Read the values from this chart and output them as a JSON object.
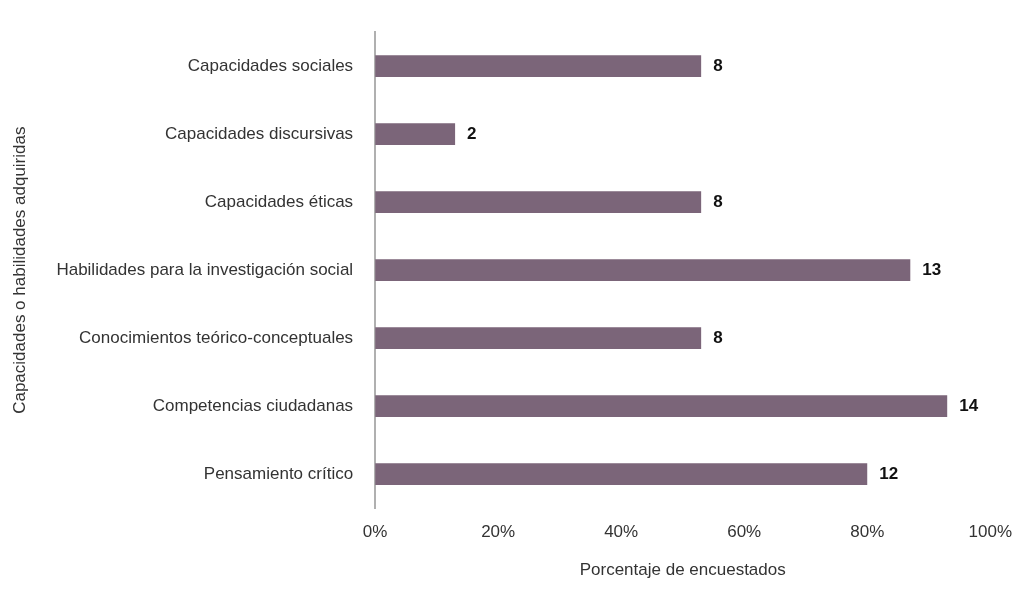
{
  "chart_data": {
    "type": "bar",
    "orientation": "horizontal",
    "xlabel": "Porcentaje de encuestados",
    "ylabel": "Capacidades o habilidades adquiridas",
    "categories": [
      "Capacidades sociales",
      "Capacidades discursivas",
      "Capacidades éticas",
      "Habilidades para la investigación social",
      "Conocimientos teórico-conceptuales",
      "Competencias ciudadanas",
      "Pensamiento crítico"
    ],
    "values": [
      53,
      13,
      53,
      87,
      53,
      93,
      80
    ],
    "color": "#7b6579",
    "xlim": [
      0,
      100
    ],
    "xticks": [
      {
        "value": 0,
        "label": "0%"
      },
      {
        "value": 20,
        "label": "20%"
      },
      {
        "value": 40,
        "label": "40%"
      },
      {
        "value": 60,
        "label": "60%"
      },
      {
        "value": 80,
        "label": "80%"
      },
      {
        "value": 100,
        "label": "100%"
      }
    ],
    "annotations": [
      {
        "text": "8",
        "x": 53,
        "y": "Capacidades sociales"
      },
      {
        "text": "2",
        "x": 13,
        "y": "Capacidades discursivas"
      },
      {
        "text": "8",
        "x": 53,
        "y": "Capacidades éticas"
      },
      {
        "text": "13",
        "x": 87,
        "y": "Habilidades para la investigación social"
      },
      {
        "text": "8",
        "x": 53,
        "y": "Conocimientos teórico-conceptuales"
      },
      {
        "text": "14",
        "x": 93,
        "y": "Competencias ciudadanas"
      },
      {
        "text": "12",
        "x": 80,
        "y": "Pensamiento crítico"
      }
    ],
    "grid": false,
    "legend": false
  }
}
